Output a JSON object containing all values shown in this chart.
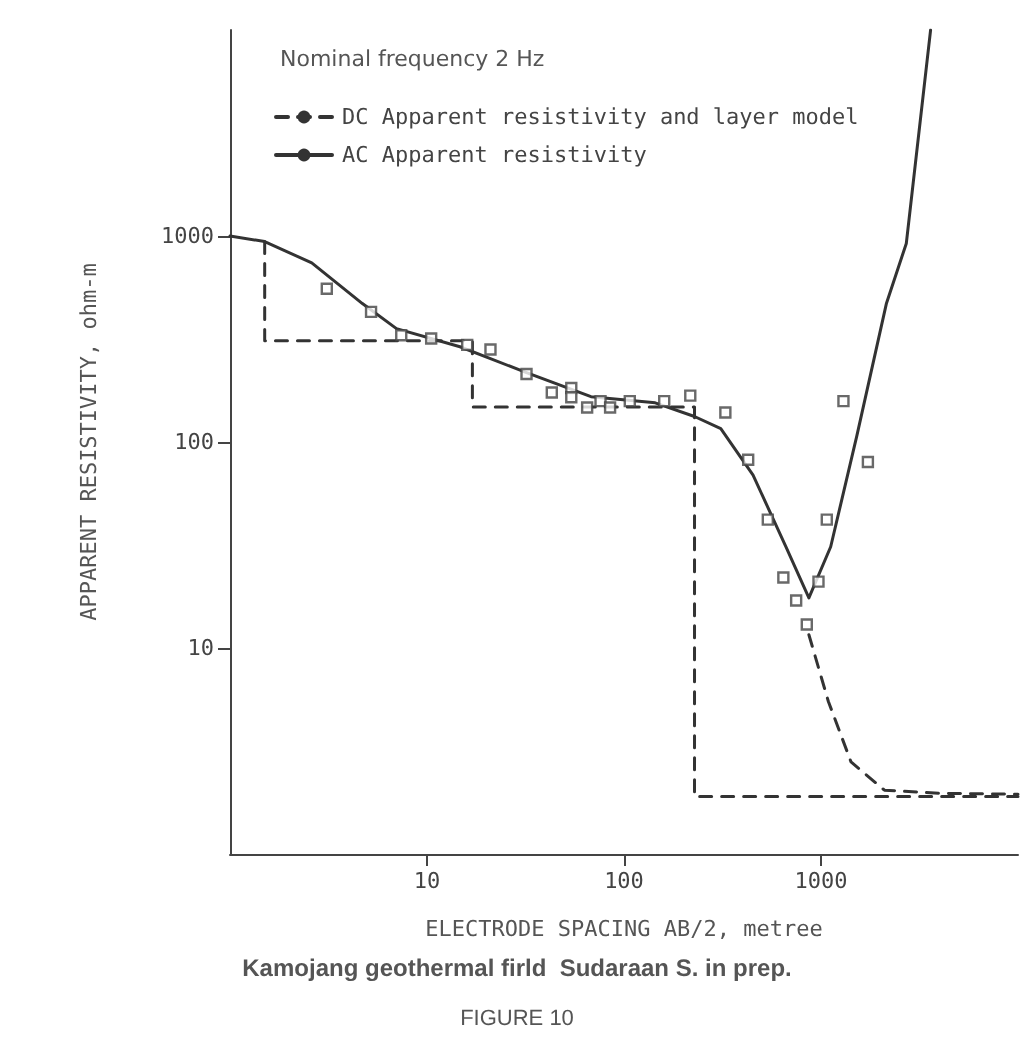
{
  "chart_data": {
    "type": "line",
    "xlabel": "ELECTRODE SPACING AB/2, metree",
    "ylabel": "APPARENT RESISTIVITY, ohm-m",
    "annotations": [
      "Nominal frequency 2 Hz",
      "Kamojang geothermal firld  Sudaraan S. in prep.",
      "FIGURE 10"
    ],
    "log": "xy",
    "grid": false,
    "legend": "top left",
    "xlim": [
      1,
      10000
    ],
    "ylim": [
      1,
      10000
    ],
    "xticks": [
      10,
      100,
      1000
    ],
    "yticks": [
      10,
      100,
      1000
    ],
    "series": [
      {
        "name": "DC Apparent resistivity and layer model",
        "line_style": "dashed",
        "marker": "none",
        "color": "#333333",
        "x": [
          1.5,
          1.5,
          17,
          17,
          228,
          228,
          10000
        ],
        "values": [
          940,
          310,
          310,
          148,
          148,
          1.9,
          1.9
        ]
      },
      {
        "line_style": "dashed",
        "marker": "none",
        "color": "#333333",
        "x": [
          868,
          1090,
          1420,
          2100,
          4000,
          10000
        ],
        "values": [
          11.6,
          5.5,
          2.8,
          2.04,
          1.97,
          1.95
        ]
      },
      {
        "name": "AC Apparent resistivity",
        "line_style": "solid",
        "marker": "none",
        "color": "#333333",
        "x": [
          1,
          1.5,
          2.6,
          4.7,
          7,
          14.7,
          32,
          68,
          144,
          228,
          310,
          452,
          664,
          868,
          1120,
          1520,
          2150,
          2710,
          3600
        ],
        "values": [
          1000,
          940,
          740,
          470,
          355,
          290,
          217,
          166,
          155,
          133,
          116,
          69,
          31,
          17.5,
          31,
          107,
          472,
          920,
          10000
        ]
      },
      {
        "type": "scatter",
        "marker": "square",
        "color": "#444444",
        "x": [
          3.1,
          5.2,
          7.4,
          10.5,
          16,
          21,
          32,
          43,
          54,
          54,
          65,
          76,
          85,
          107,
          160,
          217,
          327,
          427,
          537,
          644,
          748,
          847,
          971,
          1070,
          1730,
          1300
        ],
        "values": [
          555,
          428,
          330,
          318,
          296,
          281,
          214,
          174,
          183,
          165,
          147,
          158,
          147,
          158,
          158,
          168,
          139,
          82,
          42,
          22,
          17,
          13,
          21,
          42,
          80,
          158
        ]
      }
    ]
  }
}
